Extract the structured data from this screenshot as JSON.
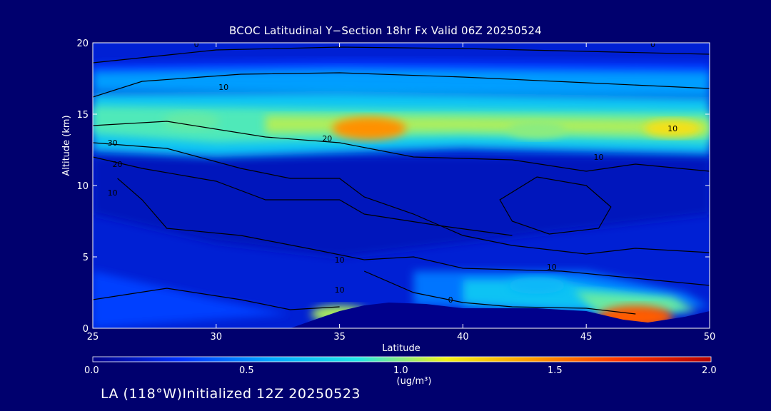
{
  "chart_data": {
    "type": "heatmap",
    "title": "BCOC Latitudinal Y−Section 18hr  Fx Valid 06Z 20250524",
    "xlabel": "Latitude",
    "ylabel": "Altitude (km)",
    "xlim": [
      25,
      50
    ],
    "ylim": [
      0,
      20
    ],
    "x_ticks": [
      "25",
      "30",
      "35",
      "40",
      "45",
      "50"
    ],
    "y_ticks": [
      "0",
      "5",
      "10",
      "15",
      "20"
    ],
    "colorbar": {
      "range": [
        0.0,
        2.0
      ],
      "tick_labels": [
        "0.0",
        "0.5",
        "1.0",
        "1.5",
        "2.0"
      ],
      "unit": "(ug/m³)",
      "colors": [
        "#00008b",
        "#0033ff",
        "#00a6ff",
        "#22e6e6",
        "#f2f21a",
        "#ff9900",
        "#ff3300",
        "#b30000"
      ]
    },
    "field_features": [
      {
        "feature": "upper band max",
        "lat": 36.2,
        "alt": 14.0,
        "value": 1.45
      },
      {
        "feature": "upper band",
        "lat": 29.0,
        "alt": 14.5,
        "value": 0.95
      },
      {
        "feature": "upper band",
        "lat": 43.0,
        "alt": 13.9,
        "value": 1.0
      },
      {
        "feature": "upper band",
        "lat": 48.5,
        "alt": 14.0,
        "value": 1.2
      },
      {
        "feature": "surface max",
        "lat": 47.0,
        "alt": 0.8,
        "value": 1.6
      },
      {
        "feature": "surface",
        "lat": 35.0,
        "alt": 1.0,
        "value": 1.05
      },
      {
        "feature": "lower",
        "lat": 43.0,
        "alt": 3.0,
        "value": 0.65
      }
    ],
    "contour_labels": [
      "0",
      "0",
      "10",
      "10",
      "10",
      "20",
      "30",
      "20",
      "10",
      "10",
      "10",
      "0",
      "10"
    ]
  },
  "footer": "LA (118°W)Initialized 12Z 20250523"
}
